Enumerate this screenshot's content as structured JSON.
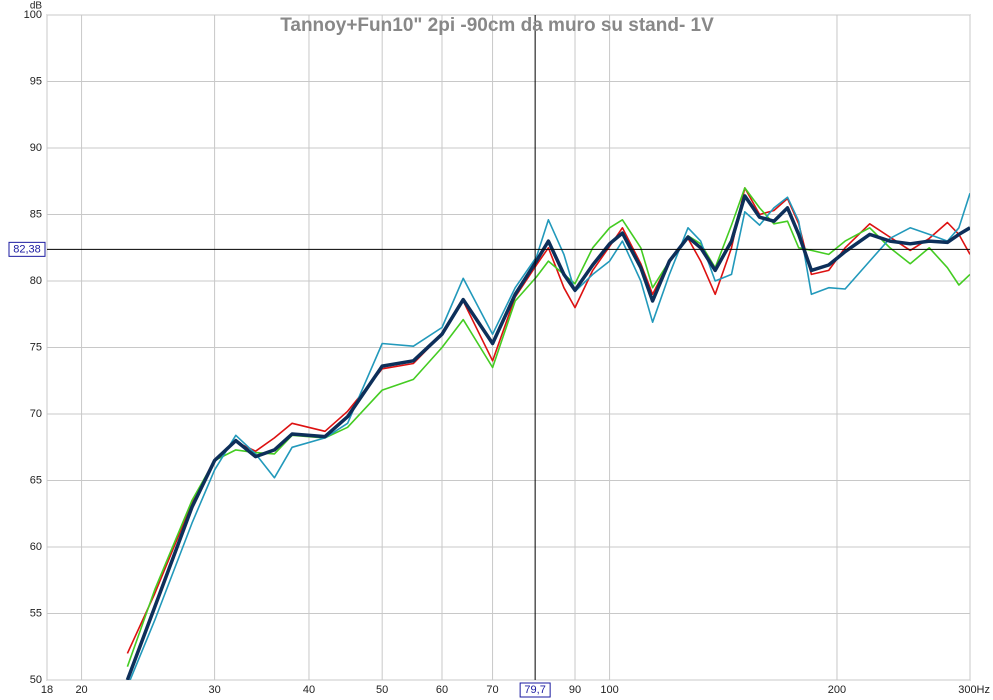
{
  "chart_data": {
    "type": "line",
    "title": "Tannoy+Fun10\" 2pi -90cm da muro su stand- 1V",
    "y_unit": "dB",
    "xscale": "log",
    "grid": true,
    "xlim": [
      18,
      300
    ],
    "ylim": [
      50,
      100
    ],
    "xticks": [
      18,
      20,
      30,
      40,
      50,
      60,
      70,
      90,
      100,
      200,
      {
        "value": 300,
        "label": "300Hz"
      }
    ],
    "yticks": [
      50,
      55,
      60,
      65,
      70,
      75,
      80,
      85,
      90,
      95,
      100
    ],
    "cursor": {
      "x": {
        "value": 79.7,
        "label": "79,7"
      },
      "y": {
        "value": 82.38,
        "label": "82,38"
      }
    },
    "x": [
      23,
      25,
      28,
      30,
      32,
      34,
      36,
      38,
      42,
      45,
      50,
      55,
      60,
      64,
      70,
      75,
      80,
      83,
      87,
      90,
      95,
      100,
      104,
      110,
      114,
      120,
      127,
      132,
      138,
      145,
      151,
      158,
      165,
      172,
      178,
      185,
      195,
      205,
      221,
      235,
      250,
      265,
      280,
      290,
      300
    ],
    "series": [
      {
        "color": "#dd1111",
        "width": 1.6,
        "values": [
          52,
          56.5,
          63.3,
          66.6,
          67.9,
          67.2,
          68.2,
          69.3,
          68.7,
          70.2,
          73.4,
          73.8,
          76,
          78.5,
          74,
          78.8,
          81.2,
          82.5,
          79.5,
          78,
          80.8,
          82.6,
          84,
          81.3,
          79,
          81.5,
          83.2,
          81.5,
          79,
          82.5,
          87,
          85,
          85.3,
          86.2,
          84.3,
          80.5,
          80.8,
          82.5,
          84.3,
          83.3,
          82.3,
          83.2,
          84.4,
          83.5,
          82
        ]
      },
      {
        "color": "#44cc22",
        "width": 1.6,
        "values": [
          51,
          56.8,
          63.5,
          66.5,
          67.3,
          67.1,
          67,
          68.4,
          68.2,
          69,
          71.8,
          72.6,
          75,
          77.1,
          73.5,
          78.5,
          80.3,
          81.5,
          80.5,
          79.8,
          82.5,
          84,
          84.6,
          82.5,
          79.5,
          81.5,
          83.4,
          82.8,
          81,
          84.2,
          87,
          85.5,
          84.3,
          84.5,
          82.5,
          82.3,
          82,
          83,
          84,
          82.5,
          81.3,
          82.5,
          81,
          79.7,
          80.5
        ]
      },
      {
        "color": "#2299bb",
        "width": 1.6,
        "values": [
          49.5,
          54.5,
          61.8,
          65.8,
          68.4,
          67,
          65.2,
          67.5,
          68.2,
          69.3,
          75.3,
          75.1,
          76.5,
          80.2,
          76,
          79.5,
          81.8,
          84.6,
          82,
          79.2,
          80.5,
          81.5,
          83,
          80,
          76.9,
          80.5,
          84,
          83,
          80,
          80.5,
          85.2,
          84.2,
          85.5,
          86.3,
          84.5,
          79,
          79.5,
          79.4,
          81.5,
          83.2,
          84,
          83.5,
          83,
          84,
          86.6
        ]
      },
      {
        "color": "#0d2f5a",
        "width": 3.5,
        "values": [
          50,
          55.5,
          63,
          66.5,
          68,
          66.8,
          67.3,
          68.5,
          68.3,
          69.8,
          73.6,
          74,
          76,
          78.6,
          75.3,
          79,
          81.5,
          83,
          80.5,
          79.3,
          81.2,
          82.8,
          83.6,
          81,
          78.5,
          81.5,
          83.3,
          82.5,
          80.8,
          83,
          86.4,
          84.8,
          84.5,
          85.5,
          83.5,
          80.8,
          81.2,
          82.2,
          83.5,
          83,
          82.8,
          83,
          82.9,
          83.5,
          84
        ]
      }
    ]
  }
}
